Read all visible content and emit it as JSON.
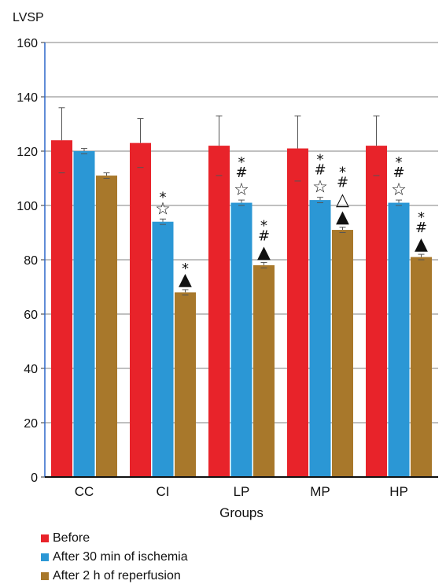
{
  "chart_data": {
    "type": "bar",
    "title": "",
    "ylabel": "LVSP",
    "xlabel": "Groups",
    "ylim": [
      0,
      160
    ],
    "yticks": [
      0,
      20,
      40,
      60,
      80,
      100,
      120,
      140,
      160
    ],
    "grid": true,
    "legend_position": "bottom",
    "categories": [
      "CC",
      "CI",
      "LP",
      "MP",
      "HP"
    ],
    "series": [
      {
        "name": "Before",
        "color": "#e8232a",
        "values": [
          124,
          123,
          122,
          121,
          122
        ],
        "errors": [
          12,
          9,
          11,
          12,
          11
        ]
      },
      {
        "name": "After 30 min of ischemia",
        "color": "#2b97d5",
        "values": [
          120,
          94,
          101,
          102,
          101
        ],
        "errors": [
          1,
          1,
          1,
          1,
          1
        ]
      },
      {
        "name": "After 2 h of reperfusion",
        "color": "#a8782b",
        "values": [
          111,
          68,
          78,
          91,
          81
        ],
        "errors": [
          1,
          1,
          1,
          1,
          1
        ]
      }
    ],
    "annotations": [
      {
        "category": 1,
        "series": 1,
        "symbols": [
          "*",
          "☆"
        ]
      },
      {
        "category": 1,
        "series": 2,
        "symbols": [
          "*",
          "▲"
        ]
      },
      {
        "category": 2,
        "series": 1,
        "symbols": [
          "*",
          "#",
          "☆"
        ]
      },
      {
        "category": 2,
        "series": 2,
        "symbols": [
          "*",
          "#",
          "▲"
        ]
      },
      {
        "category": 3,
        "series": 1,
        "symbols": [
          "*",
          "#",
          "☆"
        ]
      },
      {
        "category": 3,
        "series": 2,
        "symbols": [
          "*",
          "#",
          "△",
          "▲"
        ]
      },
      {
        "category": 4,
        "series": 1,
        "symbols": [
          "*",
          "#",
          "☆"
        ]
      },
      {
        "category": 4,
        "series": 2,
        "symbols": [
          "*",
          "#",
          "▲"
        ]
      }
    ]
  }
}
